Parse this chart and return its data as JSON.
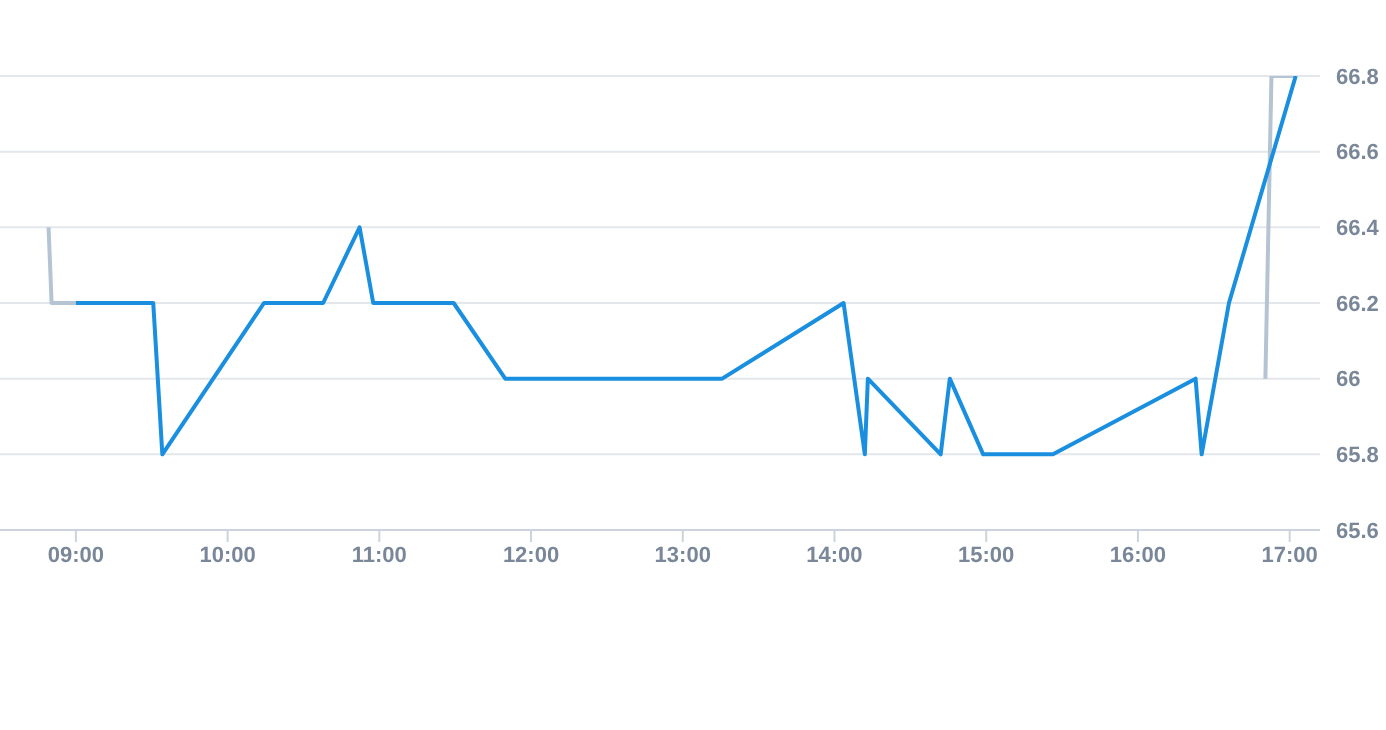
{
  "chart_data": {
    "type": "line",
    "xlim": [
      8.5,
      17.2
    ],
    "xticks": [
      {
        "value": 9,
        "label": "09:00"
      },
      {
        "value": 10,
        "label": "10:00"
      },
      {
        "value": 11,
        "label": "11:00"
      },
      {
        "value": 12,
        "label": "12:00"
      },
      {
        "value": 13,
        "label": "13:00"
      },
      {
        "value": 14,
        "label": "14:00"
      },
      {
        "value": 15,
        "label": "15:00"
      },
      {
        "value": 16,
        "label": "16:00"
      },
      {
        "value": 17,
        "label": "17:00"
      }
    ],
    "ylim": [
      65.6,
      66.8
    ],
    "yticks": [
      65.6,
      65.8,
      {
        "value": 66,
        "label": "66"
      },
      66.2,
      66.4,
      66.6,
      66.8
    ],
    "grid": "y",
    "marker": "none",
    "line_style": "solid",
    "series": [
      {
        "color": "#b4c4d2",
        "x": [
          8.82,
          8.84,
          9.0
        ],
        "values": [
          66.4,
          66.2,
          66.2
        ]
      },
      {
        "color": "#b4c4d2",
        "x": [
          16.84,
          16.88,
          17.04
        ],
        "values": [
          66.0,
          66.8,
          66.8
        ]
      },
      {
        "color": "#1a8fe0",
        "x": [
          9.0,
          9.51,
          9.57,
          10.24,
          10.63,
          10.87,
          10.96,
          11.49,
          11.83,
          13.26,
          14.06,
          14.2,
          14.22,
          14.7,
          14.76,
          14.98,
          15.44,
          16.38,
          16.42,
          16.6,
          17.04
        ],
        "values": [
          66.2,
          66.2,
          65.8,
          66.2,
          66.2,
          66.4,
          66.2,
          66.2,
          66.0,
          66.0,
          66.2,
          65.8,
          66.0,
          65.8,
          66.0,
          65.8,
          65.8,
          66.0,
          65.8,
          66.2,
          66.8
        ]
      }
    ]
  }
}
